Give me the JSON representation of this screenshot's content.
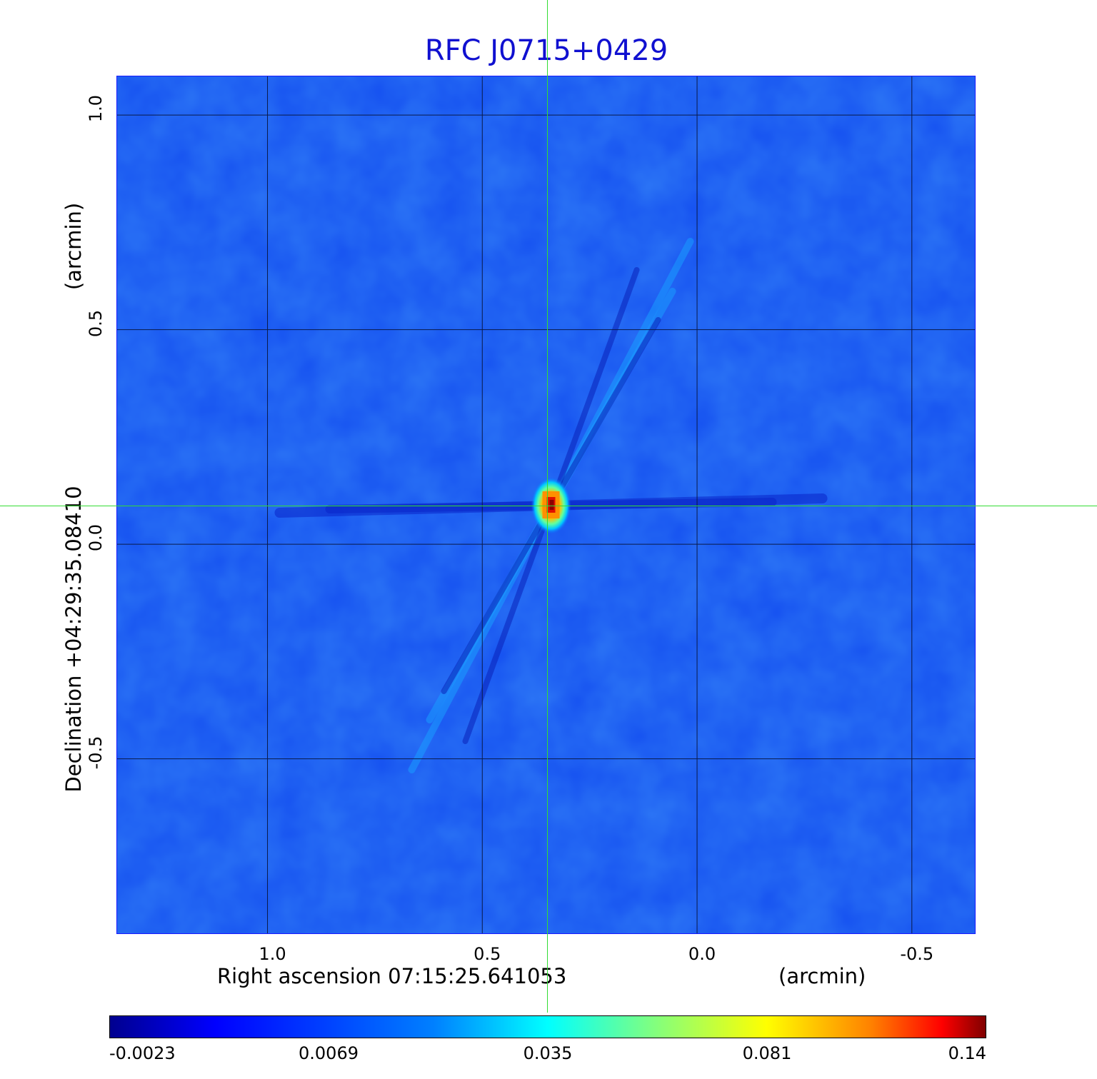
{
  "chart_data": {
    "type": "heatmap",
    "title": "RFC J0715+0429",
    "xlabel": "Right ascension  07:15:25.641053",
    "xunit": "(arcmin)",
    "ylabel": "Declination  +04:29:35.08410",
    "yunit": "(arcmin)",
    "xlim": [
      1.35,
      -0.65
    ],
    "ylim": [
      -0.91,
      1.09
    ],
    "xticks": [
      1.0,
      0.5,
      0.0,
      -0.5
    ],
    "xtick_labels": [
      "1.0",
      "0.5",
      "0.0",
      "-0.5"
    ],
    "yticks": [
      1.0,
      0.5,
      0.0,
      -0.5
    ],
    "ytick_labels": [
      "1.0",
      "0.5",
      "0.0",
      "-0.5"
    ],
    "grid": true,
    "colormap": "jet",
    "colorbar": {
      "position": "bottom",
      "tick_labels": [
        "-0.0023",
        "0.0069",
        "0.035",
        "0.081",
        "0.14"
      ]
    },
    "source": {
      "x": 0.34,
      "y": 0.09,
      "peak": 0.14
    },
    "crosshair": {
      "x": 0.345,
      "y": 0.085,
      "color": "#33dd33"
    }
  }
}
